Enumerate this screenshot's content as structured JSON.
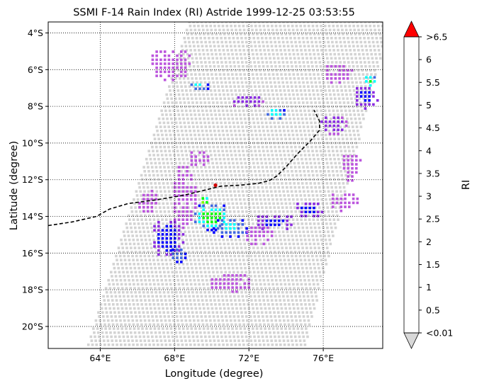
{
  "chart_data": {
    "type": "heatmap",
    "title": "SSMI F-14 Rain Index (RI) Astride 1999-12-25 03:53:55",
    "xlabel": "Longitude (degree)",
    "ylabel": "Latitude (degree)",
    "xlim": [
      61.2,
      79.2
    ],
    "ylim": [
      -21.2,
      -3.4
    ],
    "x_ticks": [
      {
        "v": 64,
        "label": "64°E"
      },
      {
        "v": 68,
        "label": "68°E"
      },
      {
        "v": 72,
        "label": "72°E"
      },
      {
        "v": 76,
        "label": "76°E"
      }
    ],
    "y_ticks": [
      {
        "v": -4,
        "label": "4°S"
      },
      {
        "v": -6,
        "label": "6°S"
      },
      {
        "v": -8,
        "label": "8°S"
      },
      {
        "v": -10,
        "label": "10°S"
      },
      {
        "v": -12,
        "label": "12°S"
      },
      {
        "v": -14,
        "label": "14°S"
      },
      {
        "v": -16,
        "label": "16°S"
      },
      {
        "v": -18,
        "label": "18°S"
      },
      {
        "v": -20,
        "label": "20°S"
      }
    ],
    "grid": "dotted",
    "swath": {
      "top": -3.4,
      "bottom": -21.2,
      "left_top": 68.8,
      "right_top": 79.6,
      "left_bottom": 63.3,
      "right_bottom": 75.0
    },
    "track": {
      "style": "dashed",
      "points": [
        [
          61.2,
          -14.5
        ],
        [
          62.5,
          -14.3
        ],
        [
          63.8,
          -14.0
        ],
        [
          64.5,
          -13.6
        ],
        [
          65.5,
          -13.3
        ],
        [
          67.0,
          -13.1
        ],
        [
          68.5,
          -12.85
        ],
        [
          69.5,
          -12.6
        ],
        [
          70.5,
          -12.35
        ],
        [
          71.5,
          -12.3
        ],
        [
          72.5,
          -12.2
        ],
        [
          73.1,
          -12.05
        ],
        [
          73.5,
          -11.8
        ],
        [
          74.0,
          -11.3
        ],
        [
          74.6,
          -10.6
        ],
        [
          75.3,
          -9.9
        ],
        [
          75.8,
          -9.3
        ],
        [
          75.8,
          -8.8
        ],
        [
          75.5,
          -8.2
        ]
      ],
      "current_point": [
        70.2,
        -12.3
      ]
    },
    "colorbar": {
      "label": "RI",
      "ticks": [
        "<0.01",
        "0.5",
        "1",
        "1.5",
        "2",
        "2.5",
        "3",
        "3.5",
        "4",
        "4.5",
        "5",
        "5.5",
        "6",
        ">6.5"
      ],
      "colors": [
        "#bb55dd",
        "#8a2be2",
        "#0000ff",
        "#4169e1",
        "#00ffff",
        "#00ff00",
        "#80ff00",
        "#ffff00",
        "#ffa500",
        "#7f0000",
        "#000000",
        "#000000"
      ],
      "under_color": "#d8d8d8",
      "over_color": "#ff0000"
    },
    "no_rain_color": "#d3d3d3",
    "rain_regions": [
      {
        "lon": 68.5,
        "lat": -12.9,
        "dlon": 0.7,
        "dlat": 1.8,
        "value": 0.5
      },
      {
        "lon": 69.6,
        "lat": -13.2,
        "dlon": 0.3,
        "dlat": 0.4,
        "value": 3.2
      },
      {
        "lon": 70.0,
        "lat": -14.0,
        "dlon": 1.1,
        "dlat": 0.8,
        "value": 2.8
      },
      {
        "lon": 71.0,
        "lat": -14.6,
        "dlon": 1.1,
        "dlat": 0.6,
        "value": 2.2
      },
      {
        "lon": 72.5,
        "lat": -15.0,
        "dlon": 0.8,
        "dlat": 0.6,
        "value": 0.5
      },
      {
        "lon": 73.4,
        "lat": -14.3,
        "dlon": 1.1,
        "dlat": 0.5,
        "value": 1.2
      },
      {
        "lon": 75.3,
        "lat": -13.6,
        "dlon": 0.9,
        "dlat": 0.5,
        "value": 1.2
      },
      {
        "lon": 77.1,
        "lat": -13.2,
        "dlon": 0.8,
        "dlat": 0.6,
        "value": 0.5
      },
      {
        "lon": 67.6,
        "lat": -15.2,
        "dlon": 0.9,
        "dlat": 1.1,
        "value": 1.3
      },
      {
        "lon": 68.2,
        "lat": -16.1,
        "dlon": 0.5,
        "dlat": 0.5,
        "value": 2.0
      },
      {
        "lon": 69.3,
        "lat": -6.9,
        "dlon": 0.6,
        "dlat": 0.3,
        "value": 2.2
      },
      {
        "lon": 71.9,
        "lat": -7.7,
        "dlon": 0.9,
        "dlat": 0.4,
        "value": 1.0
      },
      {
        "lon": 73.4,
        "lat": -8.4,
        "dlon": 0.6,
        "dlat": 0.4,
        "value": 2.5
      },
      {
        "lon": 76.5,
        "lat": -9.0,
        "dlon": 0.8,
        "dlat": 0.6,
        "value": 0.8
      },
      {
        "lon": 78.3,
        "lat": -7.5,
        "dlon": 0.7,
        "dlat": 0.7,
        "value": 1.2
      },
      {
        "lon": 78.5,
        "lat": -6.6,
        "dlon": 0.4,
        "dlat": 0.4,
        "value": 2.8
      },
      {
        "lon": 76.8,
        "lat": -6.2,
        "dlon": 0.8,
        "dlat": 0.6,
        "value": 0.5
      },
      {
        "lon": 67.8,
        "lat": -5.7,
        "dlon": 1.2,
        "dlat": 0.9,
        "value": 0.5
      },
      {
        "lon": 69.3,
        "lat": -10.8,
        "dlon": 0.6,
        "dlat": 0.5,
        "value": 0.5
      },
      {
        "lon": 66.5,
        "lat": -13.2,
        "dlon": 0.6,
        "dlat": 0.8,
        "value": 0.5
      },
      {
        "lon": 71.0,
        "lat": -17.6,
        "dlon": 1.2,
        "dlat": 0.6,
        "value": 0.5
      },
      {
        "lon": 77.5,
        "lat": -11.3,
        "dlon": 0.6,
        "dlat": 0.8,
        "value": 0.5
      }
    ]
  }
}
